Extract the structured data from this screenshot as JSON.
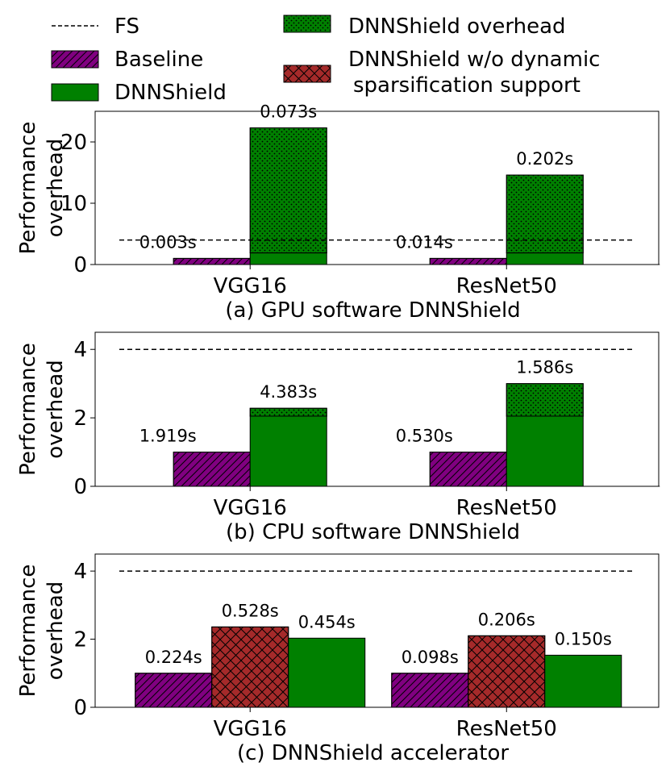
{
  "legend": {
    "fs": "FS",
    "baseline": "Baseline",
    "dnnshield": "DNNShield",
    "overhead": "DNNShield overhead",
    "nodyn_line1": "DNNShield w/o dynamic",
    "nodyn_line2": "sparsification support"
  },
  "colors": {
    "baseline": "#800080",
    "dnnshield": "#008000",
    "nodyn": "#a52a2a",
    "edge": "#000000"
  },
  "chart_data": [
    {
      "type": "bar",
      "title": "(a) GPU software DNNShield",
      "ylabel": "Performance overhead",
      "ylabel_lines": [
        "Performance",
        "overhead"
      ],
      "ylim": [
        0,
        25
      ],
      "yticks": [
        0,
        10,
        20
      ],
      "categories": [
        "VGG16",
        "ResNet50"
      ],
      "fs_line": 4,
      "series": [
        {
          "name": "Baseline",
          "values": [
            1,
            1
          ]
        },
        {
          "name": "DNNShield",
          "values": [
            1.9,
            1.9
          ]
        },
        {
          "name": "DNNShield overhead",
          "stacked_on": "DNNShield",
          "values": [
            20.4,
            12.7
          ]
        }
      ],
      "labels": [
        {
          "series": "Baseline",
          "text": [
            "0.003s",
            "0.014s"
          ]
        },
        {
          "series": "DNNShield",
          "text": [
            "0.073s",
            "0.202s"
          ]
        }
      ]
    },
    {
      "type": "bar",
      "title": "(b) CPU software DNNShield",
      "ylabel": "Performance overhead",
      "ylabel_lines": [
        "Performance",
        "overhead"
      ],
      "ylim": [
        0,
        4.5
      ],
      "yticks": [
        0,
        2,
        4
      ],
      "categories": [
        "VGG16",
        "ResNet50"
      ],
      "fs_line": 4,
      "series": [
        {
          "name": "Baseline",
          "values": [
            1,
            1
          ]
        },
        {
          "name": "DNNShield",
          "values": [
            2.05,
            2.05
          ]
        },
        {
          "name": "DNNShield overhead",
          "stacked_on": "DNNShield",
          "values": [
            0.23,
            0.95
          ]
        }
      ],
      "labels": [
        {
          "series": "Baseline",
          "text": [
            "1.919s",
            "0.530s"
          ]
        },
        {
          "series": "DNNShield",
          "text": [
            "4.383s",
            "1.586s"
          ]
        }
      ]
    },
    {
      "type": "bar",
      "title": "(c) DNNShield accelerator",
      "ylabel": "Performance overhead",
      "ylabel_lines": [
        "Performance",
        "overhead"
      ],
      "ylim": [
        0,
        4.5
      ],
      "yticks": [
        0,
        2,
        4
      ],
      "categories": [
        "VGG16",
        "ResNet50"
      ],
      "fs_line": 4,
      "series": [
        {
          "name": "Baseline",
          "values": [
            1,
            1
          ]
        },
        {
          "name": "DNNShield w/o dynamic sparsification support",
          "values": [
            2.36,
            2.1
          ]
        },
        {
          "name": "DNNShield",
          "values": [
            2.03,
            1.53
          ]
        }
      ],
      "labels": [
        {
          "series": "Baseline",
          "text": [
            "0.224s",
            "0.098s"
          ]
        },
        {
          "series": "DNNShield w/o dynamic sparsification support",
          "text": [
            "0.528s",
            "0.206s"
          ]
        },
        {
          "series": "DNNShield",
          "text": [
            "0.454s",
            "0.150s"
          ]
        }
      ]
    }
  ]
}
